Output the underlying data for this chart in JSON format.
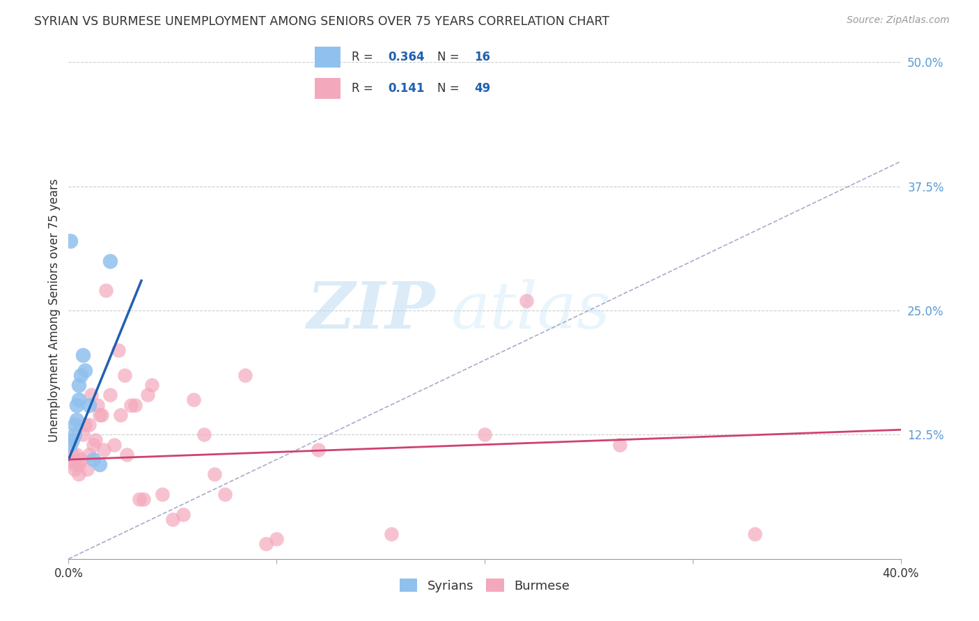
{
  "title": "SYRIAN VS BURMESE UNEMPLOYMENT AMONG SENIORS OVER 75 YEARS CORRELATION CHART",
  "source": "Source: ZipAtlas.com",
  "ylabel": "Unemployment Among Seniors over 75 years",
  "xlim": [
    0.0,
    0.4
  ],
  "ylim": [
    0.0,
    0.5
  ],
  "xticks": [
    0.0,
    0.1,
    0.2,
    0.3,
    0.4
  ],
  "xticklabels": [
    "0.0%",
    "",
    "",
    "",
    "40.0%"
  ],
  "yticks": [
    0.0,
    0.125,
    0.25,
    0.375,
    0.5
  ],
  "yticklabels": [
    "",
    "12.5%",
    "25.0%",
    "37.5%",
    "50.0%"
  ],
  "grid_color": "#cccccc",
  "background_color": "#ffffff",
  "syrians_color": "#90c0ee",
  "burmese_color": "#f4a8bc",
  "syrian_line_color": "#2060b0",
  "burmese_line_color": "#d04070",
  "ref_line_color": "#aaaacc",
  "legend_R_syrian": "0.364",
  "legend_N_syrian": "16",
  "legend_R_burmese": "0.141",
  "legend_N_burmese": "49",
  "watermark_zip": "ZIP",
  "watermark_atlas": "atlas",
  "syrians_x": [
    0.001,
    0.002,
    0.003,
    0.003,
    0.004,
    0.004,
    0.005,
    0.005,
    0.006,
    0.007,
    0.008,
    0.01,
    0.012,
    0.015,
    0.02,
    0.001
  ],
  "syrians_y": [
    0.115,
    0.12,
    0.125,
    0.135,
    0.14,
    0.155,
    0.175,
    0.16,
    0.185,
    0.205,
    0.19,
    0.155,
    0.1,
    0.095,
    0.3,
    0.32
  ],
  "burmese_x": [
    0.001,
    0.002,
    0.003,
    0.003,
    0.004,
    0.005,
    0.005,
    0.006,
    0.007,
    0.008,
    0.009,
    0.01,
    0.01,
    0.011,
    0.012,
    0.013,
    0.014,
    0.015,
    0.016,
    0.017,
    0.018,
    0.02,
    0.022,
    0.024,
    0.025,
    0.027,
    0.028,
    0.03,
    0.032,
    0.034,
    0.036,
    0.038,
    0.04,
    0.045,
    0.05,
    0.055,
    0.06,
    0.065,
    0.07,
    0.075,
    0.085,
    0.095,
    0.1,
    0.12,
    0.155,
    0.2,
    0.22,
    0.265,
    0.33
  ],
  "burmese_y": [
    0.1,
    0.105,
    0.09,
    0.095,
    0.105,
    0.095,
    0.085,
    0.1,
    0.125,
    0.135,
    0.09,
    0.105,
    0.135,
    0.165,
    0.115,
    0.12,
    0.155,
    0.145,
    0.145,
    0.11,
    0.27,
    0.165,
    0.115,
    0.21,
    0.145,
    0.185,
    0.105,
    0.155,
    0.155,
    0.06,
    0.06,
    0.165,
    0.175,
    0.065,
    0.04,
    0.045,
    0.16,
    0.125,
    0.085,
    0.065,
    0.185,
    0.015,
    0.02,
    0.11,
    0.025,
    0.125,
    0.26,
    0.115,
    0.025
  ],
  "blue_line_x": [
    0.0,
    0.035
  ],
  "blue_line_y": [
    0.1,
    0.28
  ],
  "pink_line_x": [
    0.0,
    0.4
  ],
  "pink_line_y": [
    0.1,
    0.13
  ]
}
